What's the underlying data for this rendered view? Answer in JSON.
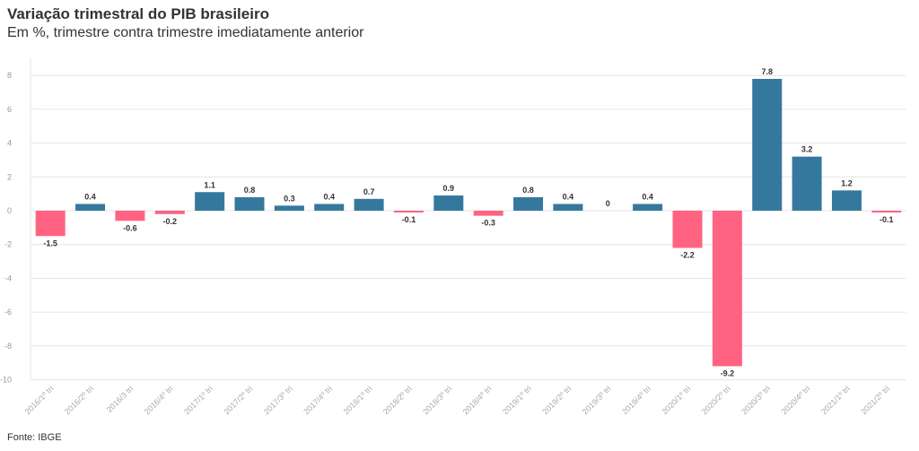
{
  "header": {
    "title": "Variação trimestral do PIB brasileiro",
    "subtitle": "Em %, trimestre contra trimestre imediatamente anterior"
  },
  "footer": {
    "source": "Fonte: IBGE"
  },
  "colors": {
    "positive": "#35789e",
    "negative": "#ff6381",
    "grid": "#e6e6e6"
  },
  "chart_data": {
    "type": "bar",
    "title": "Variação trimestral do PIB brasileiro",
    "subtitle": "Em %, trimestre contra trimestre imediatamente anterior",
    "categories": [
      "2016/1º tri",
      "2016/2º tri",
      "2016/3 tri",
      "2016/4º tri",
      "2017/1º tri",
      "2017/2º tri",
      "2017/3º tri",
      "2017/4º tri",
      "2018/1º tri",
      "2018/2º tri",
      "2018/3º tri",
      "2018/4º tri",
      "2019/1º tri",
      "2019/2º tri",
      "2019/3º tri",
      "2019/4º tri",
      "2020/1º tri",
      "2020/2º tri",
      "2020/3º tri",
      "2020/4º tri",
      "2021/1º tri",
      "2021/2º tri"
    ],
    "values": [
      -1.5,
      0.4,
      -0.6,
      -0.2,
      1.1,
      0.8,
      0.3,
      0.4,
      0.7,
      -0.1,
      0.9,
      -0.3,
      0.8,
      0.4,
      0,
      0.4,
      -2.2,
      -9.2,
      7.8,
      3.2,
      1.2,
      -0.1
    ],
    "value_labels": [
      "-1.5",
      "0.4",
      "-0.6",
      "-0.2",
      "1.1",
      "0.8",
      "0.3",
      "0.4",
      "0.7",
      "-0.1",
      "0.9",
      "-0.3",
      "0.8",
      "0.4",
      "0",
      "0.4",
      "-2.2",
      "-9.2",
      "7.8",
      "3.2",
      "1.2",
      "-0.1"
    ],
    "yticks": [
      8,
      6,
      4,
      2,
      0,
      -2,
      -4,
      -6,
      -8,
      -10
    ],
    "ylim": [
      -10,
      9
    ],
    "xlabel": "",
    "ylabel": "",
    "grid": true,
    "legend": "none"
  }
}
